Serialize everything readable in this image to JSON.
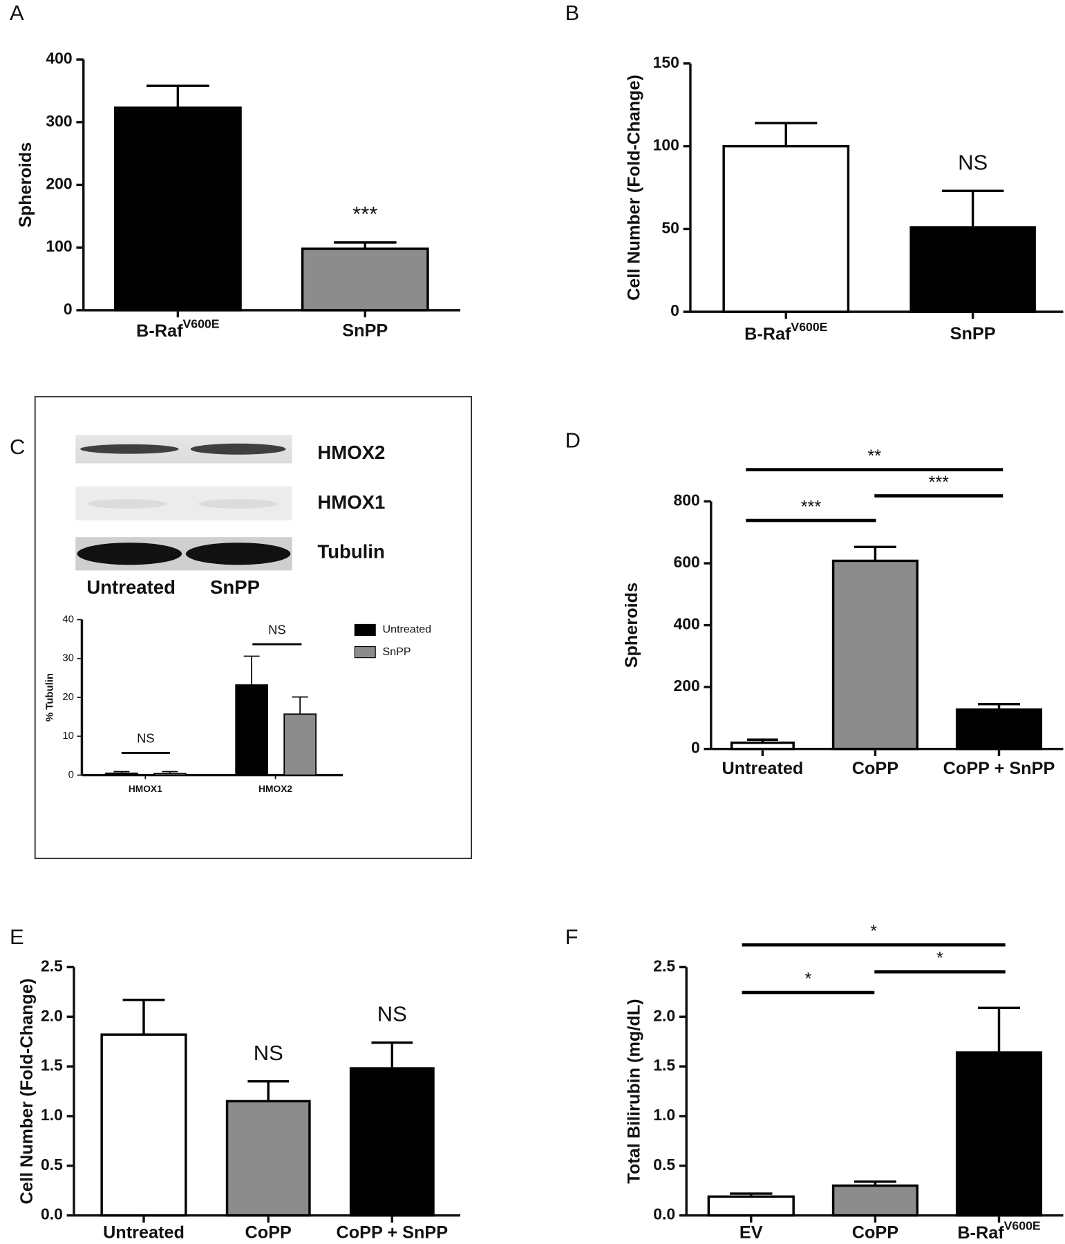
{
  "chart_data": [
    {
      "panel_label": "A",
      "type": "bar",
      "ylabel": "Spheroids",
      "categories": [
        {
          "base": "B-Raf",
          "sup": "V600E"
        },
        "SnPP"
      ],
      "values": [
        323,
        98
      ],
      "errors": [
        35,
        10
      ],
      "colors": [
        "#000000",
        "#8c8c8c"
      ],
      "ylim": [
        0,
        400
      ],
      "yticks": [
        0,
        100,
        200,
        300,
        400
      ],
      "annotations": [
        "***"
      ]
    },
    {
      "panel_label": "B",
      "type": "bar",
      "ylabel": "Cell Number (Fold-Change)",
      "categories": [
        {
          "base": "B-Raf",
          "sup": "V600E"
        },
        "SnPP"
      ],
      "values": [
        100,
        51
      ],
      "errors": [
        14,
        22
      ],
      "colors": [
        "#ffffff",
        "#000000"
      ],
      "ylim": [
        0,
        150
      ],
      "yticks": [
        0,
        50,
        100,
        150
      ],
      "annotations": [
        "NS"
      ]
    },
    {
      "panel_label": "C",
      "type": "grouped_bar",
      "ylabel": "% Tubulin",
      "blot": {
        "bands": [
          "HMOX2",
          "HMOX1",
          "Tubulin"
        ],
        "lanes": [
          "Untreated",
          "SnPP"
        ]
      },
      "categories": [
        "HMOX1",
        "HMOX2"
      ],
      "series": [
        {
          "name": "Untreated",
          "color": "#000000",
          "values": [
            0.5,
            23.2
          ],
          "errors": [
            0.4,
            7.4
          ]
        },
        {
          "name": "SnPP",
          "color": "#8c8c8c",
          "values": [
            0.4,
            15.7
          ],
          "errors": [
            0.5,
            4.4
          ]
        }
      ],
      "ylim": [
        0,
        40
      ],
      "yticks": [
        0,
        10,
        20,
        30,
        40
      ],
      "annotations": [
        "NS",
        "NS"
      ]
    },
    {
      "panel_label": "D",
      "type": "bar",
      "ylabel": "Spheroids",
      "categories": [
        "Untreated",
        "CoPP",
        "CoPP + SnPP"
      ],
      "values": [
        20,
        608,
        127
      ],
      "errors": [
        10,
        45,
        18
      ],
      "colors": [
        "#ffffff",
        "#8c8c8c",
        "#000000"
      ],
      "ylim": [
        0,
        800
      ],
      "yticks": [
        0,
        200,
        400,
        600,
        800
      ],
      "annotations": [
        "***",
        "***",
        "**"
      ]
    },
    {
      "panel_label": "E",
      "type": "bar",
      "ylabel": "Cell Number (Fold-Change)",
      "categories": [
        "Untreated",
        "CoPP",
        "CoPP + SnPP"
      ],
      "values": [
        1.82,
        1.15,
        1.48
      ],
      "errors": [
        0.35,
        0.2,
        0.26
      ],
      "colors": [
        "#ffffff",
        "#8c8c8c",
        "#000000"
      ],
      "ylim": [
        0,
        2.5
      ],
      "yticks": [
        {
          "value": 0,
          "label": "0.0"
        },
        0.5,
        {
          "value": 1,
          "label": "1.0"
        },
        1.5,
        {
          "value": 2,
          "label": "2.0"
        },
        2.5
      ],
      "annotations": [
        "NS",
        "NS"
      ]
    },
    {
      "panel_label": "F",
      "type": "bar",
      "ylabel": "Total Bilirubin (mg/dL)",
      "categories": [
        "EV",
        "CoPP",
        {
          "base": "B-Raf",
          "sup": "V600E"
        }
      ],
      "values": [
        0.19,
        0.3,
        1.64
      ],
      "errors": [
        0.03,
        0.04,
        0.45
      ],
      "colors": [
        "#ffffff",
        "#8c8c8c",
        "#000000"
      ],
      "ylim": [
        0,
        2.5
      ],
      "yticks": [
        {
          "value": 0,
          "label": "0.0"
        },
        0.5,
        {
          "value": 1,
          "label": "1.0"
        },
        1.5,
        {
          "value": 2,
          "label": "2.0"
        },
        2.5
      ],
      "annotations": [
        "*",
        "*",
        "*"
      ]
    }
  ]
}
